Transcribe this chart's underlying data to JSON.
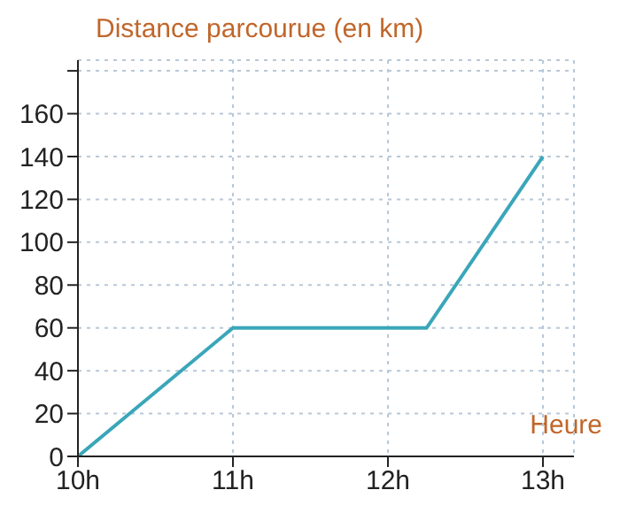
{
  "chart_data": {
    "type": "line",
    "ylabel": "Distance parcourue (en km)",
    "xlabel": "Heure",
    "x": [
      10,
      11,
      12.25,
      13
    ],
    "series": [
      {
        "color": "#3aa6b9",
        "values": [
          0,
          60,
          60,
          140
        ]
      }
    ],
    "xlim": [
      10,
      13.2
    ],
    "xticks": [
      {
        "value": 10,
        "label": "10h"
      },
      {
        "value": 11,
        "label": "11h"
      },
      {
        "value": 12,
        "label": "12h"
      },
      {
        "value": 13,
        "label": "13h"
      }
    ],
    "ylim": [
      0,
      185
    ],
    "yticks": [
      0,
      20,
      40,
      60,
      80,
      100,
      120,
      140,
      160,
      {
        "value": 180,
        "label": null
      }
    ],
    "grid": true,
    "marker": "none",
    "line_style": "solid"
  }
}
